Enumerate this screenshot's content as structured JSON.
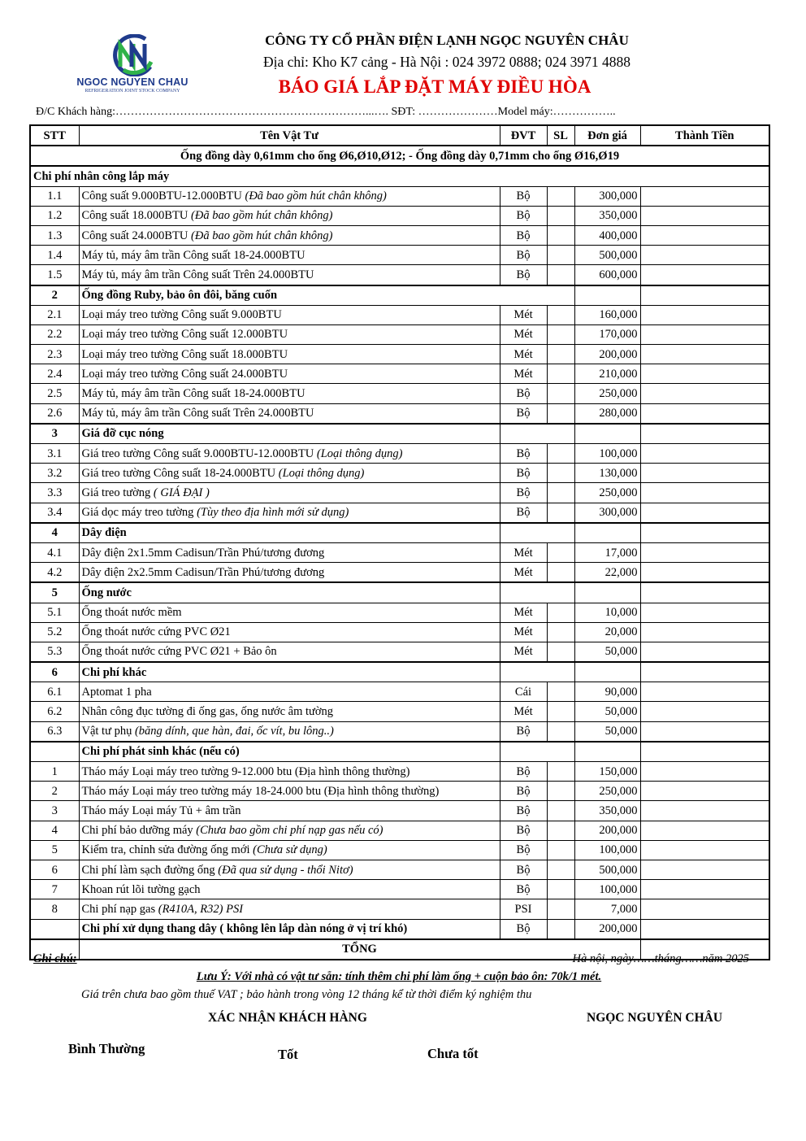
{
  "header": {
    "logo_text": "NGOC NGUYEN CHAU",
    "logo_subtext": "REFRIGERATION JOINT STOCK COMPANY",
    "company": "CÔNG TY CỔ PHẦN ĐIỆN LẠNH NGỌC NGUYÊN CHÂU",
    "address": "Địa chỉ: Kho K7 cảng - Hà Nội : 024 3972 0888; 024 3971 4888",
    "title": "BÁO GIÁ  LẮP ĐẶT MÁY ĐIỀU HÒA",
    "customer_line": "Đ/C Khách hàng:…………………………………………………………...…. SĐT: …………………Model máy:……………..",
    "title_color": "#e00000"
  },
  "table": {
    "columns": [
      "STT",
      "Tên Vật Tư",
      "ĐVT",
      "SL",
      "Đơn giá",
      "Thành Tiền"
    ],
    "note": "Ống đồng dày 0,61mm cho ống Ø6,Ø10,Ø12;  - Ống đồng dày 0,71mm cho ống Ø16,Ø19",
    "rows": [
      {
        "type": "sec",
        "stt": "",
        "name": "Chi phí nhân công lắp máy",
        "full": true
      },
      {
        "stt": "1.1",
        "name": "Công suất 9.000BTU-12.000BTU ",
        "note": "(Đã bao gồm hút chân không)",
        "unit": "Bộ",
        "price": "300,000"
      },
      {
        "stt": "1.2",
        "name": "Công suất 18.000BTU ",
        "note": "(Đã bao gồm hút chân không)",
        "unit": "Bộ",
        "price": "350,000"
      },
      {
        "stt": "1.3",
        "name": "Công suất 24.000BTU ",
        "note": "(Đã bao gồm hút chân không)",
        "unit": "Bộ",
        "price": "400,000"
      },
      {
        "stt": "1.4",
        "name": "Máy tủ, máy âm trần Công suất 18-24.000BTU",
        "unit": "Bộ",
        "price": "500,000"
      },
      {
        "stt": "1.5",
        "name": "Máy tủ, máy âm trần Công suất Trên 24.000BTU",
        "unit": "Bộ",
        "price": "600,000"
      },
      {
        "type": "sec",
        "stt": "2",
        "name": "Ống đồng Ruby, bảo ôn đôi, băng cuốn",
        "wide": true
      },
      {
        "stt": "2.1",
        "name": "Loại máy treo tường Công suất 9.000BTU",
        "unit": "Mét",
        "price": "160,000"
      },
      {
        "stt": "2.2",
        "name": "Loại máy treo tường Công suất 12.000BTU",
        "unit": "Mét",
        "price": "170,000"
      },
      {
        "stt": "2.3",
        "name": "Loại máy treo tường Công suất 18.000BTU",
        "unit": "Mét",
        "price": "200,000"
      },
      {
        "stt": "2.4",
        "name": "Loại máy treo tường Công suất 24.000BTU",
        "unit": "Mét",
        "price": "210,000"
      },
      {
        "stt": "2.5",
        "name": "Máy tủ, máy âm trần Công suất 18-24.000BTU",
        "unit": "Bộ",
        "price": "250,000"
      },
      {
        "stt": "2.6",
        "name": "Máy tủ, máy âm trần Công suất Trên 24.000BTU",
        "unit": "Bộ",
        "price": "280,000"
      },
      {
        "type": "sec",
        "stt": "3",
        "name": "Giá đỡ cục nóng"
      },
      {
        "stt": "3.1",
        "name": "Giá treo tường Công suất 9.000BTU-12.000BTU ",
        "note": "(Loại thông dụng)",
        "unit": "Bộ",
        "price": "100,000"
      },
      {
        "stt": "3.2",
        "name": "Giá treo tường Công suất 18-24.000BTU ",
        "note": "(Loại thông dụng)",
        "unit": "Bộ",
        "price": "130,000"
      },
      {
        "stt": "3.3",
        "name": "Giá treo tường ",
        "note": "( GIÁ ĐẠI )",
        "unit": "Bộ",
        "price": "250,000"
      },
      {
        "stt": "3.4",
        "name": "Giá dọc máy treo tường ",
        "note": "(Tùy theo địa hình mới sử dụng)",
        "unit": "Bộ",
        "price": "300,000"
      },
      {
        "type": "sec",
        "stt": "4",
        "name": "Dây điện"
      },
      {
        "stt": "4.1",
        "name": "Dây điện 2x1.5mm Cadisun/Trần Phú/tương đương",
        "unit": "Mét",
        "price": "17,000"
      },
      {
        "stt": "4.2",
        "name": "Dây điện 2x2.5mm Cadisun/Trần Phú/tương đương",
        "unit": "Mét",
        "price": "22,000"
      },
      {
        "type": "sec",
        "stt": "5",
        "name": "Ống nước"
      },
      {
        "stt": "5.1",
        "name": "Ống thoát nước mềm",
        "unit": "Mét",
        "price": "10,000"
      },
      {
        "stt": "5.2",
        "name": "Ống thoát nước cứng PVC Ø21",
        "unit": "Mét",
        "price": "20,000"
      },
      {
        "stt": "5.3",
        "name": "Ống thoát nước cứng PVC Ø21 + Bảo ôn",
        "unit": "Mét",
        "price": "50,000"
      },
      {
        "type": "sec",
        "stt": "6",
        "name": "Chi phí khác"
      },
      {
        "stt": "6.1",
        "name": "Aptomat 1 pha",
        "unit": "Cái",
        "price": "90,000"
      },
      {
        "stt": "6.2",
        "name": "Nhân công đục tường đi ống gas, ống nước âm tường",
        "unit": "Mét",
        "price": "50,000"
      },
      {
        "stt": "6.3",
        "name": "Vật tư phụ ",
        "note": "(băng dính, que hàn, đai, ốc vít, bu lông..)",
        "unit": "Bộ",
        "price": "50,000"
      },
      {
        "type": "sec",
        "stt": "",
        "name": "Chi phí phát sinh khác (nếu có)"
      },
      {
        "stt": "1",
        "name": "Tháo máy Loại máy treo tường 9-12.000  btu (Địa hình thông thường)",
        "unit": "Bộ",
        "price": "150,000"
      },
      {
        "stt": "2",
        "name": "Tháo máy Loại máy treo tường máy 18-24.000 btu (Địa hình thông thường)",
        "unit": "Bộ",
        "price": "250,000"
      },
      {
        "stt": "3",
        "name": "Tháo máy Loại máy Tủ + âm trần",
        "unit": "Bộ",
        "price": "350,000"
      },
      {
        "stt": "4",
        "name": "Chi phí bảo dưỡng máy ",
        "note": "(Chưa bao gồm chi phí nạp gas nếu có)",
        "unit": "Bộ",
        "price": "200,000"
      },
      {
        "stt": "5",
        "name": "Kiểm tra, chỉnh sửa đường ống mới ",
        "note": "(Chưa sử dụng)",
        "unit": "Bộ",
        "price": "100,000"
      },
      {
        "stt": "6",
        "name": "Chi phí làm sạch đường ống ",
        "note": "(Đã qua sử dụng - thổi Nitơ)",
        "unit": "Bộ",
        "price": "500,000"
      },
      {
        "stt": "7",
        "name": "Khoan rút lõi tường gạch",
        "unit": "Bộ",
        "price": "100,000"
      },
      {
        "stt": "8",
        "name": "Chi phí nạp gas ",
        "note": "(R410A, R32) PSI",
        "unit": "PSI",
        "price": "7,000"
      },
      {
        "stt": "",
        "name": "Chi phí xử dụng thang dây ( không lên lắp dàn nóng ở vị trí khó)",
        "unit": "Bộ",
        "price": "200,000",
        "bold": true
      }
    ],
    "total_label": "TỔNG"
  },
  "footer": {
    "ghi_chu": "Ghi chú:",
    "date": "Hà nội, ngày……tháng……năm 2025",
    "luu_y": "Lưu Ý: Với nhà có vật tư sẵn:  tính thêm chi phí làm ống + cuộn bảo ôn: 70k/1 mét.",
    "vat": "Giá trên chưa bao gồm thuế VAT ; bảo hành trong vòng 12 tháng kể từ thời điểm ký nghiệm thu",
    "confirm_customer": "XÁC NHẬN KHÁCH HÀNG",
    "confirm_company": "NGỌC NGUYÊN CHÂU",
    "rating_normal": "Bình Thường",
    "rating_good": "Tốt",
    "rating_bad": "Chưa tốt"
  }
}
